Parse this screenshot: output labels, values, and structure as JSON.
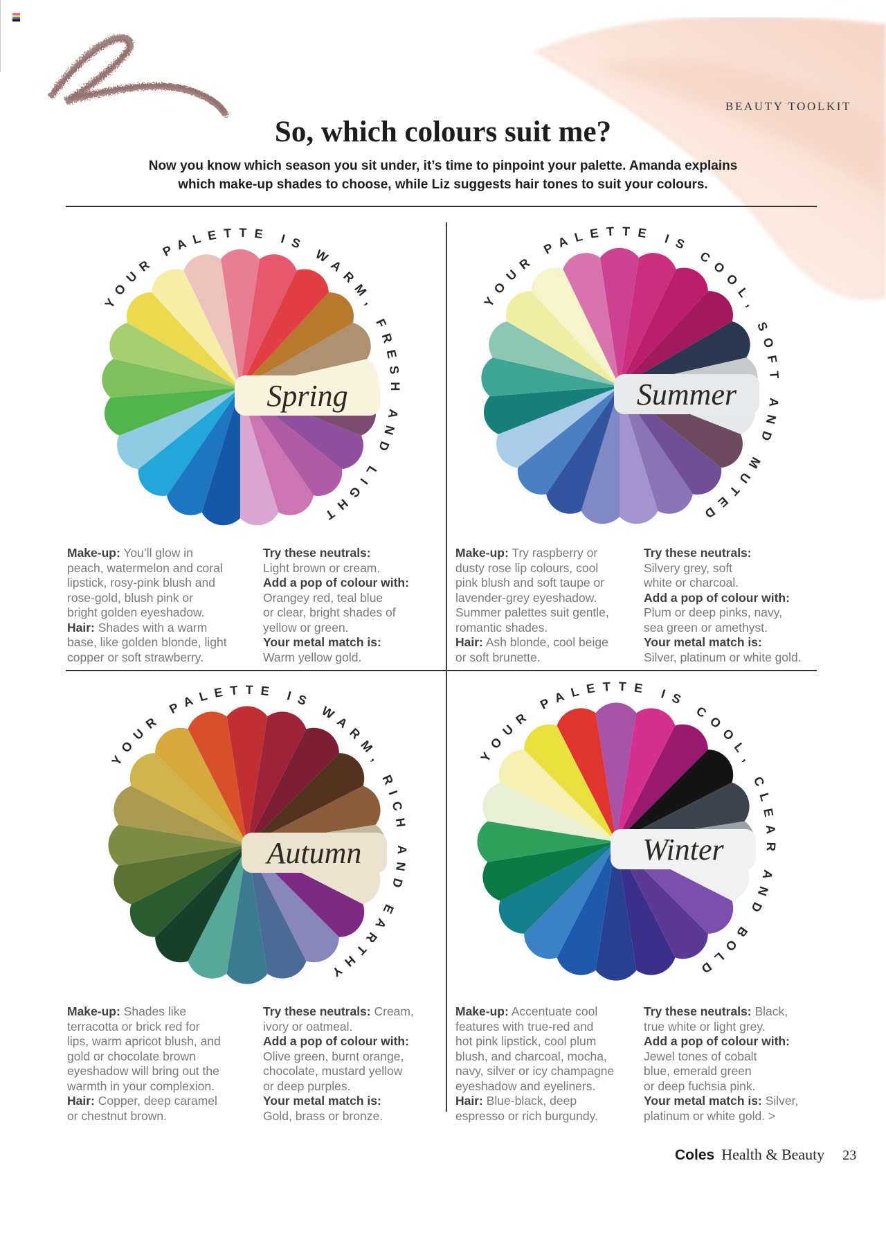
{
  "page": {
    "kicker": "BEAUTY TOOLKIT",
    "title": "So, which colours suit me?",
    "intro": "Now you know which season you sit under, it’s time to pinpoint your palette. Amanda explains\nwhich make-up shades to choose, while Liz suggests hair tones to suit your colours.",
    "footer": {
      "brand": "Coles",
      "title": "Health & Beauty",
      "page_number": "23"
    },
    "print_mark_colors": [
      "#ee5fa5",
      "#f2e12c",
      "#4166d2",
      "#151515"
    ],
    "decor_pencil_color": "#8a6260",
    "decor_smear_colors": [
      "#f4d4c6",
      "#f9e4da",
      "#fdf4f0"
    ]
  },
  "seasons": [
    {
      "id": "spring",
      "name": "Spring",
      "arc_text": "YOUR PALETTE IS WARM, FRESH AND LIGHT",
      "label_bg": "#f9f4de",
      "wheel_colors": [
        "#e87e94",
        "#e7586e",
        "#e23f44",
        "#b8792c",
        "#ae9170",
        "#f8f3de",
        "#7d4a70",
        "#8f4f9e",
        "#b05ba6",
        "#cd74b2",
        "#dba6cf",
        "#1757a8",
        "#1d76c2",
        "#22a7d8",
        "#8fcbe2",
        "#52b44c",
        "#7fc05e",
        "#a8ce72",
        "#ecd94d",
        "#f6eea6",
        "#efc3bd"
      ],
      "columns": [
        [
          {
            "b": "Make-up:"
          },
          {
            "t": " You’ll glow in\npeach, watermelon and coral\nlipstick, rosy-pink blush and\nrose-gold, blush pink or\nbright golden eyeshadow.\n"
          },
          {
            "b": "Hair:"
          },
          {
            "t": " Shades with a warm\nbase, like golden blonde, light\ncopper or soft strawberry."
          }
        ],
        [
          {
            "b": "Try these neutrals:"
          },
          {
            "t": "\nLight brown or cream.\n"
          },
          {
            "b": "Add a pop of colour with:"
          },
          {
            "t": "\nOrangey red, teal blue\nor clear, bright shades of\nyellow or green.\n"
          },
          {
            "b": "Your metal match is:"
          },
          {
            "t": "\nWarm yellow gold."
          }
        ]
      ]
    },
    {
      "id": "summer",
      "name": "Summer",
      "arc_text": "YOUR PALETTE IS COOL, SOFT AND MUTED",
      "label_bg": "#e7e9ea",
      "wheel_colors": [
        "#ce4190",
        "#cc2e7e",
        "#bb1f6b",
        "#a2195c",
        "#2b3850",
        "#c6cacd",
        "#e6e8e9",
        "#6d4a5f",
        "#6f5097",
        "#8a74b5",
        "#a393cf",
        "#8088c5",
        "#33549e",
        "#4a7fc1",
        "#a9cce9",
        "#187f78",
        "#3da693",
        "#8cc7b4",
        "#eeefa5",
        "#f6f4cb",
        "#d873ae"
      ],
      "columns": [
        [
          {
            "b": "Make-up:"
          },
          {
            "t": " Try raspberry or\ndusty rose lip colours, cool\npink blush and soft taupe or\nlavender-grey eyeshadow.\nSummer palettes suit gentle,\nromantic shades.\n"
          },
          {
            "b": "Hair:"
          },
          {
            "t": " Ash blonde, cool beige\nor soft brunette."
          }
        ],
        [
          {
            "b": "Try these neutrals:"
          },
          {
            "t": "\nSilvery grey, soft\nwhite or charcoal.\n"
          },
          {
            "b": "Add a pop of colour with:"
          },
          {
            "t": "\nPlum or deep pinks, navy,\nsea green or amethyst.\n"
          },
          {
            "b": "Your metal match is:"
          },
          {
            "t": "\nSilver, platinum or white gold."
          }
        ]
      ]
    },
    {
      "id": "autumn",
      "name": "Autumn",
      "arc_text": "YOUR PALETTE IS WARM, RICH AND EARTHY",
      "label_bg": "#ebe3cf",
      "wheel_colors": [
        "#c22f33",
        "#9e2238",
        "#7c1f34",
        "#543220",
        "#8a5c3a",
        "#c2b89a",
        "#ece4d0",
        "#7c2a82",
        "#8886ba",
        "#4c6a96",
        "#3b7a91",
        "#58a899",
        "#17402a",
        "#2a5c2f",
        "#5c7134",
        "#7e8b44",
        "#a89a50",
        "#d2b44c",
        "#d7a93d",
        "#d8502b"
      ],
      "columns": [
        [
          {
            "b": "Make-up:"
          },
          {
            "t": " Shades like\nterracotta or brick red for\nlips, warm apricot blush, and\ngold or chocolate brown\neyeshadow will bring out the\nwarmth in your complexion.\n"
          },
          {
            "b": "Hair:"
          },
          {
            "t": " Copper, deep caramel\nor chestnut brown."
          }
        ],
        [
          {
            "b": "Try these neutrals:"
          },
          {
            "t": " Cream,\nivory or oatmeal.\n"
          },
          {
            "b": "Add a pop of colour with:"
          },
          {
            "t": "\nOlive green, burnt orange,\nchocolate, mustard yellow\nor deep purples.\n"
          },
          {
            "b": "Your metal match is:"
          },
          {
            "t": "\nGold, brass or bronze."
          }
        ]
      ]
    },
    {
      "id": "winter",
      "name": "Winter",
      "arc_text": "YOUR PALETTE IS COOL, CLEAR AND BOLD",
      "label_bg": "#f2f2f2",
      "wheel_colors": [
        "#a653a8",
        "#d3308f",
        "#99196e",
        "#141414",
        "#3e444d",
        "#9aa1a9",
        "#f1f1f1",
        "#7a4fae",
        "#5b3a95",
        "#3b2f8a",
        "#27408f",
        "#1e59ac",
        "#3a82c4",
        "#15808d",
        "#0c7a45",
        "#2da05b",
        "#e9efd5",
        "#f5f1b2",
        "#eae13f",
        "#e0342e"
      ],
      "columns": [
        [
          {
            "b": "Make-up:"
          },
          {
            "t": " Accentuate cool\nfeatures with true-red and\nhot pink lipstick, cool plum\nblush, and charcoal, mocha,\nnavy, silver or icy champagne\neyeshadow and eyeliners.\n"
          },
          {
            "b": "Hair:"
          },
          {
            "t": " Blue-black, deep\nespresso or rich burgundy."
          }
        ],
        [
          {
            "b": "Try these neutrals:"
          },
          {
            "t": " Black,\ntrue white or light grey.\n"
          },
          {
            "b": "Add a pop of colour with:"
          },
          {
            "t": "\nJewel tones of cobalt\nblue, emerald green\nor deep fuchsia pink.\n"
          },
          {
            "b": "Your metal match is:"
          },
          {
            "t": " Silver,\nplatinum or white gold. >"
          }
        ]
      ]
    }
  ]
}
